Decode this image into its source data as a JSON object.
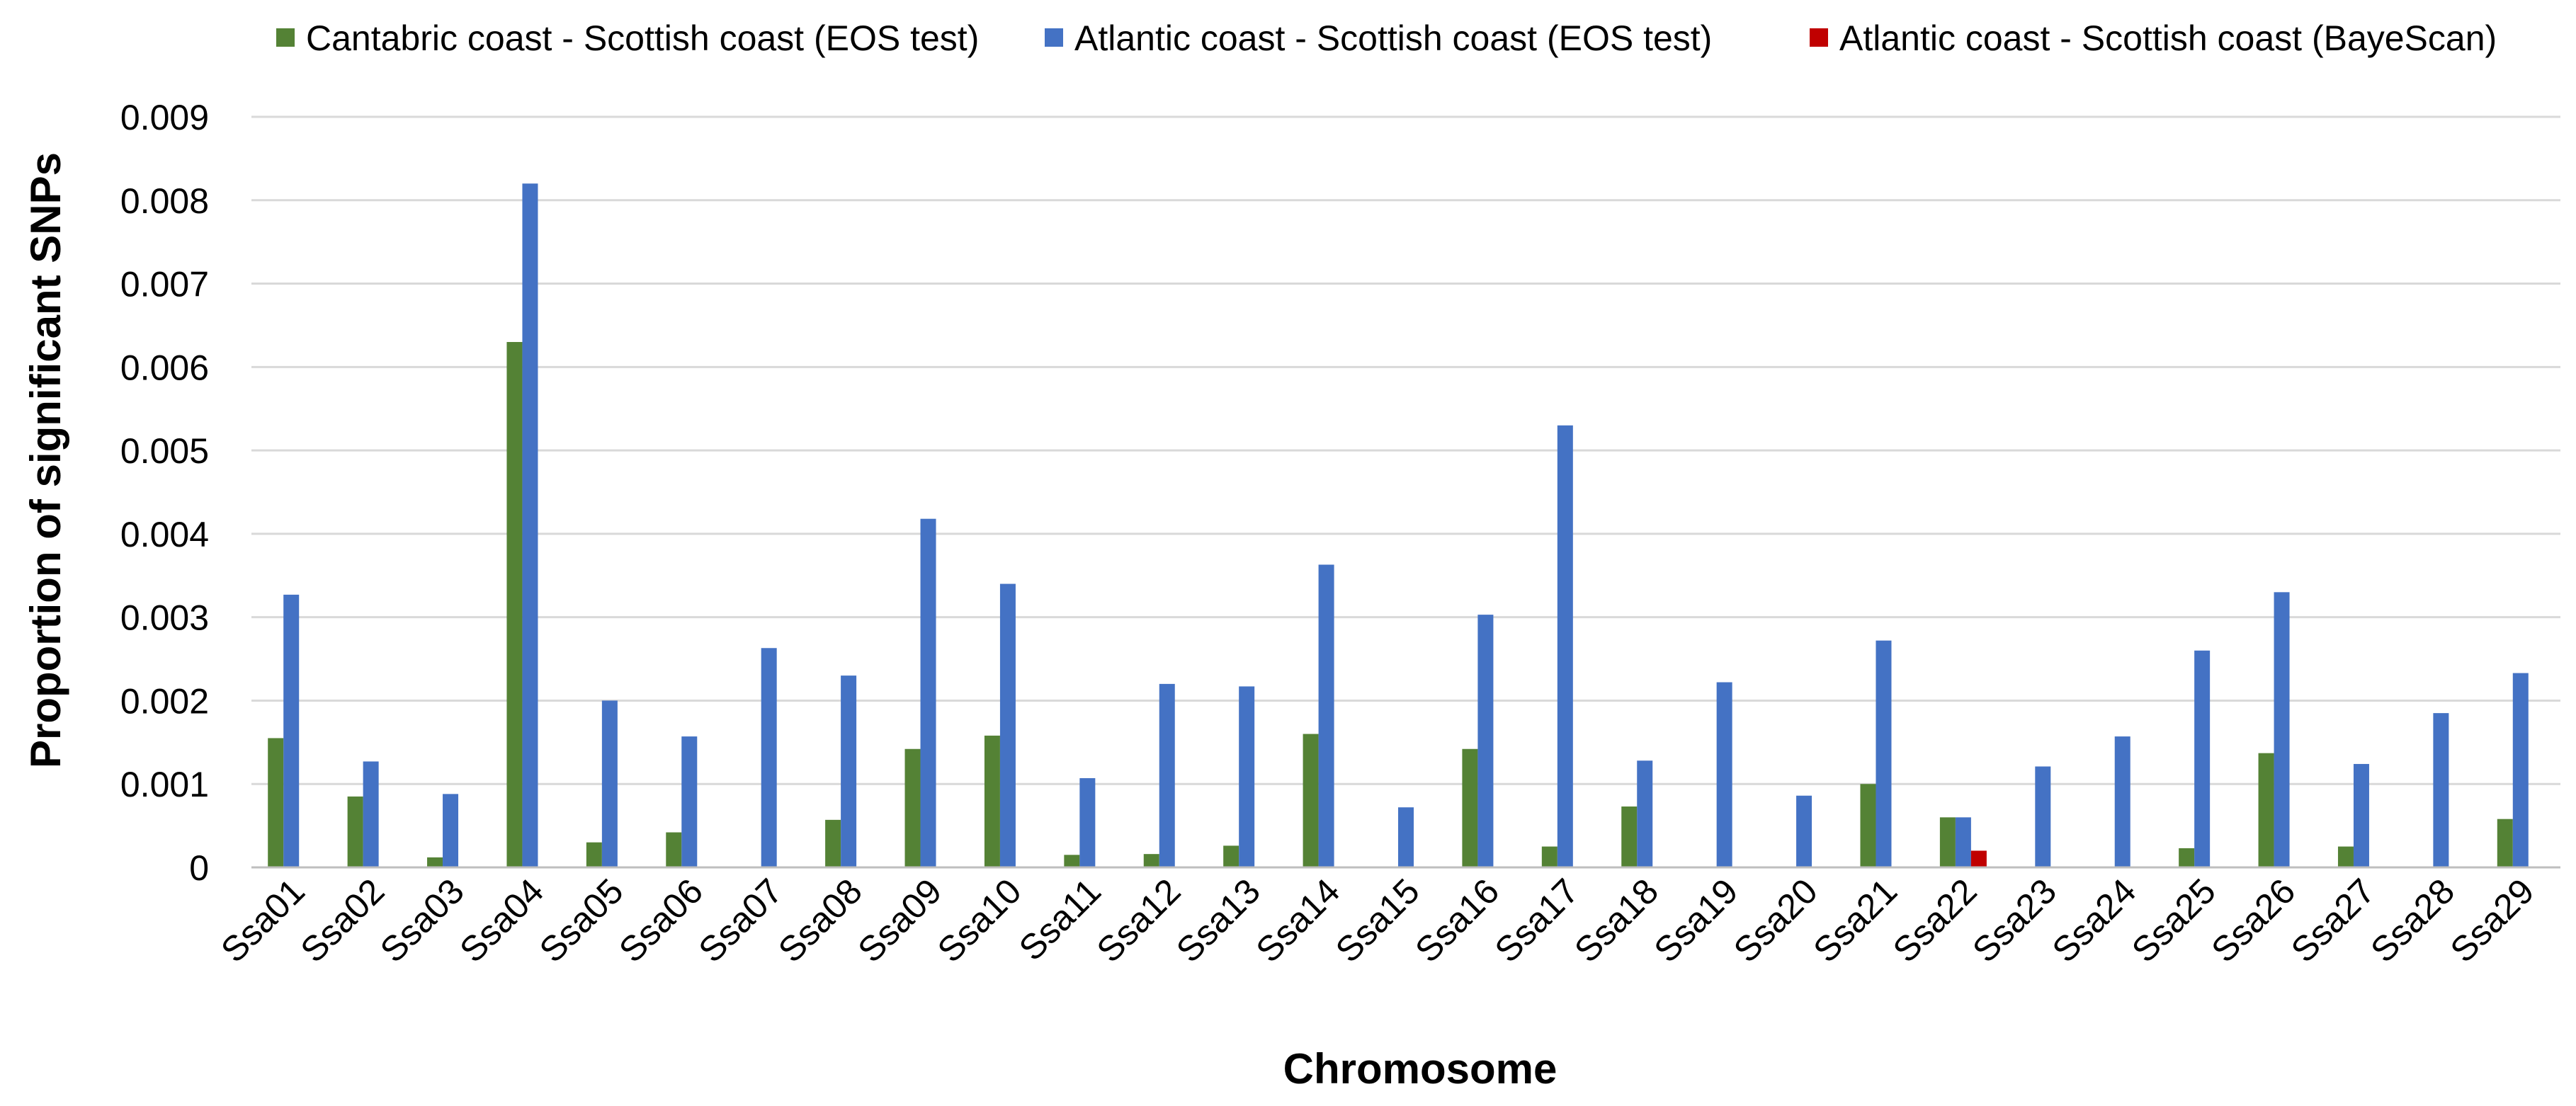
{
  "chart_data": {
    "type": "bar",
    "title": "",
    "xlabel": "Chromosome",
    "ylabel": "Proportion of significant SNPs",
    "ylim": [
      0,
      0.009
    ],
    "yticks": [
      0,
      0.001,
      0.002,
      0.003,
      0.004,
      0.005,
      0.006,
      0.007,
      0.008,
      0.009
    ],
    "ytick_labels": [
      "0",
      "0.001",
      "0.002",
      "0.003",
      "0.004",
      "0.005",
      "0.006",
      "0.007",
      "0.008",
      "0.009"
    ],
    "grid": true,
    "legend_position": "top",
    "categories": [
      "Ssa01",
      "Ssa02",
      "Ssa03",
      "Ssa04",
      "Ssa05",
      "Ssa06",
      "Ssa07",
      "Ssa08",
      "Ssa09",
      "Ssa10",
      "Ssa11",
      "Ssa12",
      "Ssa13",
      "Ssa14",
      "Ssa15",
      "Ssa16",
      "Ssa17",
      "Ssa18",
      "Ssa19",
      "Ssa20",
      "Ssa21",
      "Ssa22",
      "Ssa23",
      "Ssa24",
      "Ssa25",
      "Ssa26",
      "Ssa27",
      "Ssa28",
      "Ssa29"
    ],
    "series": [
      {
        "name": "Cantabric coast - Scottish coast (EOS test)",
        "color": "#548235",
        "values": [
          0.00155,
          0.00085,
          0.00012,
          0.0063,
          0.0003,
          0.00042,
          0,
          0.00057,
          0.00142,
          0.00158,
          0.00015,
          0.00016,
          0.00026,
          0.0016,
          0,
          0.00142,
          0.00025,
          0.00073,
          0,
          0,
          0.001,
          0.0006,
          0,
          0,
          0.00023,
          0.00137,
          0.00025,
          0,
          0.00058
        ]
      },
      {
        "name": "Atlantic coast - Scottish coast (EOS test)",
        "color": "#4472C4",
        "values": [
          0.00327,
          0.00127,
          0.00088,
          0.0082,
          0.002,
          0.00157,
          0.00263,
          0.0023,
          0.00418,
          0.0034,
          0.00107,
          0.0022,
          0.00217,
          0.00363,
          0.00072,
          0.00303,
          0.0053,
          0.00128,
          0.00222,
          0.00086,
          0.00272,
          0.0006,
          0.00121,
          0.00157,
          0.0026,
          0.0033,
          0.00124,
          0.00185,
          0.00233
        ]
      },
      {
        "name": "Atlantic coast - Scottish coast (BayeScan)",
        "color": "#C00000",
        "values": [
          0,
          0,
          0,
          0,
          0,
          0,
          0,
          0,
          0,
          0,
          0,
          0,
          0,
          0,
          0,
          0,
          0,
          0,
          0,
          0,
          0,
          0.0002,
          0,
          0,
          0,
          0,
          0,
          0,
          0
        ]
      }
    ]
  }
}
